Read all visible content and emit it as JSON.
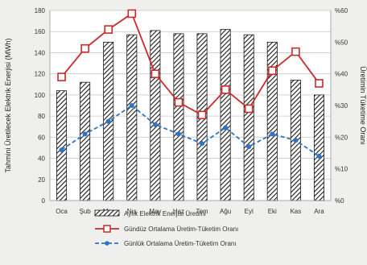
{
  "chart_data": {
    "type": "bar",
    "categories": [
      "Oca",
      "Şub",
      "Mar",
      "Nıs",
      "May",
      "Haz",
      "Tem",
      "Ağu",
      "Eyl",
      "Eki",
      "Kas",
      "Ara"
    ],
    "series": [
      {
        "name": "Aylık Elektrik Enerjisi Üretimi",
        "type": "bar",
        "axis": "left",
        "pattern": "hatched",
        "values": [
          104,
          112,
          150,
          157,
          161,
          158,
          158,
          162,
          157,
          150,
          114,
          100
        ]
      },
      {
        "name": "Gündüz Ortalama Üretim-Tüketim Oranı",
        "type": "line",
        "axis": "right",
        "marker": "square",
        "line_style": "solid",
        "color": "#cc2a2a",
        "values": [
          39,
          48,
          54,
          59,
          40,
          31,
          27,
          35,
          29,
          41,
          47,
          37
        ]
      },
      {
        "name": "Günlük Ortalama Üretim-Tüketim Oranı",
        "type": "line",
        "axis": "right",
        "marker": "circle",
        "line_style": "dashed",
        "color": "#2e74c4",
        "values": [
          16,
          21,
          25,
          30,
          24,
          21,
          18,
          23,
          17,
          21,
          19,
          14
        ]
      }
    ],
    "ylabel": "Tahmini Üretilecek Elektrik Enerjisi (MWh)",
    "ylabel_right": "Üretimin Tüketime Oranı",
    "ylim": [
      0,
      180
    ],
    "yticks": [
      "0",
      "20",
      "40",
      "60",
      "80",
      "100",
      "120",
      "140",
      "160",
      "180"
    ],
    "ylim_right": [
      0,
      60
    ],
    "yticks_right": [
      "%0",
      "%10",
      "%20",
      "%30",
      "%40",
      "%50",
      "%60"
    ],
    "grid": "horizontal",
    "legend_position": "bottom"
  }
}
